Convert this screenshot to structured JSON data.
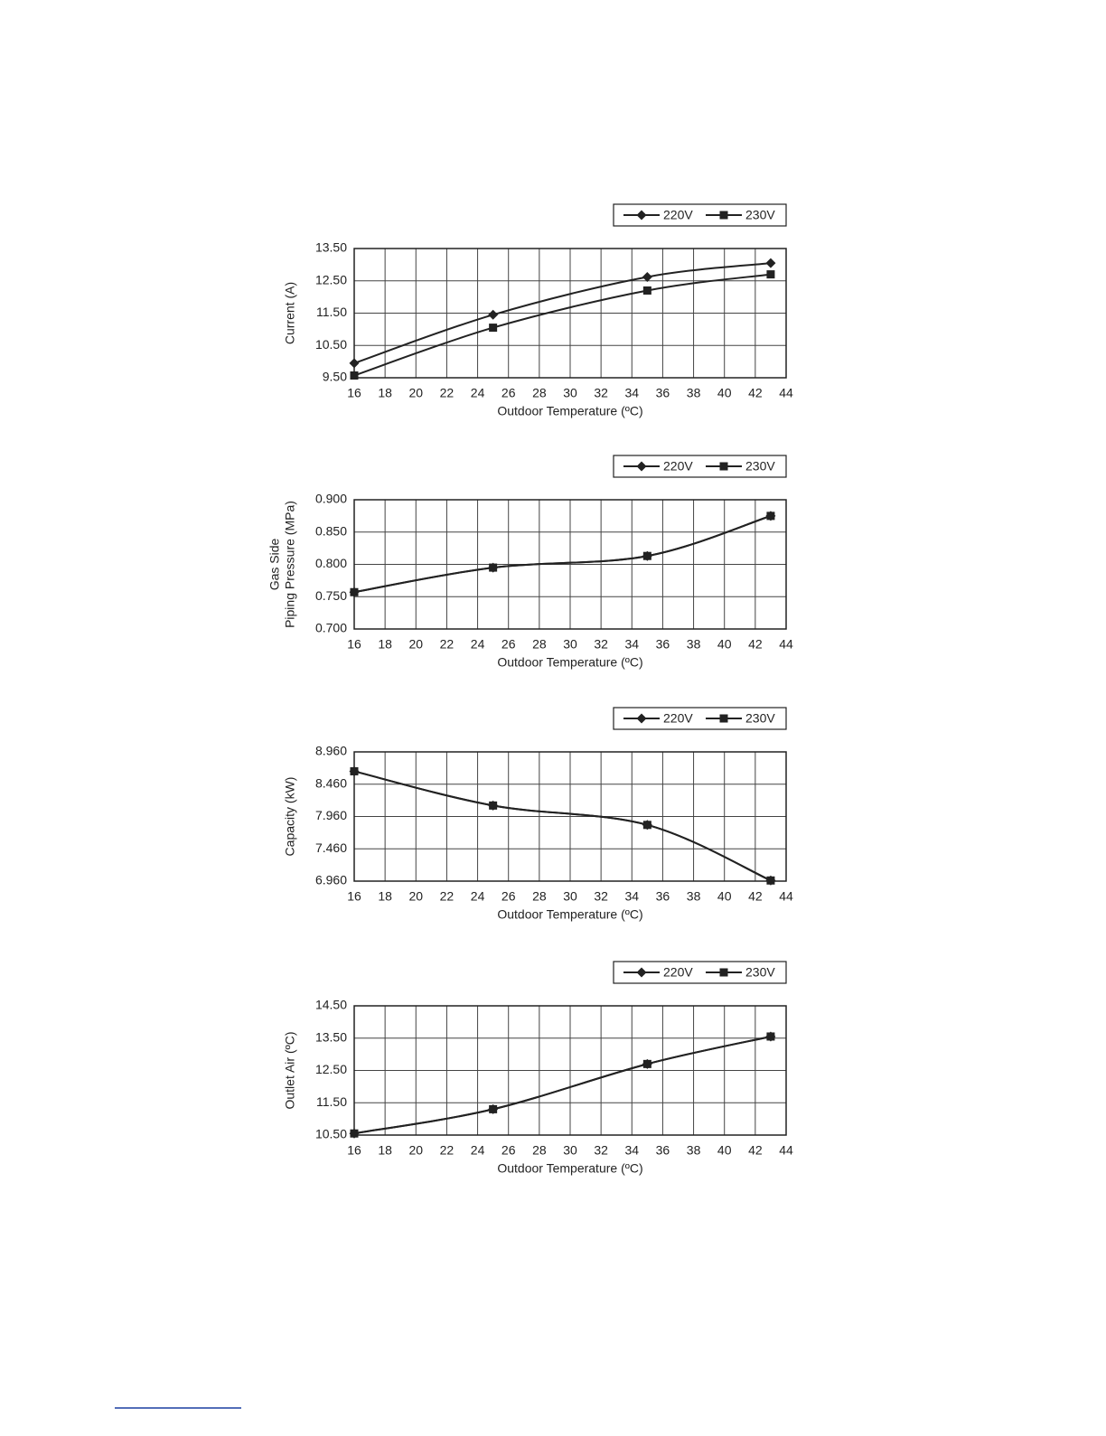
{
  "chart_data": [
    {
      "type": "line",
      "x_label": "Outdoor Temperature (ºC)",
      "y_label": [
        "Current (A)"
      ],
      "x": [
        16,
        25,
        35,
        43
      ],
      "series": [
        {
          "name": "220V",
          "color": "#222222",
          "marker": "diamond",
          "values": [
            9.95,
            11.45,
            12.62,
            13.05
          ]
        },
        {
          "name": "230V",
          "color": "#222222",
          "marker": "square",
          "values": [
            9.57,
            11.05,
            12.2,
            12.7
          ]
        }
      ],
      "xlim": [
        16,
        44
      ],
      "xticks": [
        16,
        18,
        20,
        22,
        24,
        26,
        28,
        30,
        32,
        34,
        36,
        38,
        40,
        42,
        44
      ],
      "ylim": [
        9.5,
        13.5
      ],
      "yticks": [
        {
          "value": 9.5,
          "label": "9.50"
        },
        {
          "value": 10.5,
          "label": "10.50"
        },
        {
          "value": 11.5,
          "label": "11.50"
        },
        {
          "value": 12.5,
          "label": "12.50"
        },
        {
          "value": 13.5,
          "label": "13.50"
        }
      ],
      "grid": true
    },
    {
      "type": "line",
      "x_label": "Outdoor Temperature (ºC)",
      "y_label": [
        "Gas Side",
        "Piping Pressure (MPa)"
      ],
      "x": [
        16,
        25,
        35,
        43
      ],
      "series": [
        {
          "name": "220V",
          "color": "#222222",
          "marker": "diamond",
          "values": [
            0.757,
            0.795,
            0.813,
            0.875
          ]
        },
        {
          "name": "230V",
          "color": "#222222",
          "marker": "square",
          "values": [
            0.757,
            0.795,
            0.813,
            0.875
          ]
        }
      ],
      "xlim": [
        16,
        44
      ],
      "xticks": [
        16,
        18,
        20,
        22,
        24,
        26,
        28,
        30,
        32,
        34,
        36,
        38,
        40,
        42,
        44
      ],
      "ylim": [
        0.7,
        0.9
      ],
      "yticks": [
        {
          "value": 0.7,
          "label": "0.700"
        },
        {
          "value": 0.75,
          "label": "0.750"
        },
        {
          "value": 0.8,
          "label": "0.800"
        },
        {
          "value": 0.85,
          "label": "0.850"
        },
        {
          "value": 0.9,
          "label": "0.900"
        }
      ],
      "grid": true
    },
    {
      "type": "line",
      "x_label": "Outdoor Temperature (ºC)",
      "y_label": [
        "Capacity (kW)"
      ],
      "x": [
        16,
        25,
        35,
        43
      ],
      "series": [
        {
          "name": "220V",
          "color": "#222222",
          "marker": "diamond",
          "values": [
            8.66,
            8.13,
            7.83,
            6.97
          ]
        },
        {
          "name": "230V",
          "color": "#222222",
          "marker": "square",
          "values": [
            8.66,
            8.13,
            7.83,
            6.97
          ]
        }
      ],
      "xlim": [
        16,
        44
      ],
      "xticks": [
        16,
        18,
        20,
        22,
        24,
        26,
        28,
        30,
        32,
        34,
        36,
        38,
        40,
        42,
        44
      ],
      "ylim": [
        6.96,
        8.96
      ],
      "yticks": [
        {
          "value": 6.96,
          "label": "6.960"
        },
        {
          "value": 7.46,
          "label": "7.460"
        },
        {
          "value": 7.96,
          "label": "7.960"
        },
        {
          "value": 8.46,
          "label": "8.460"
        },
        {
          "value": 8.96,
          "label": "8.960"
        }
      ],
      "grid": true
    },
    {
      "type": "line",
      "x_label": "Outdoor Temperature (ºC)",
      "y_label": [
        "Outlet Air (ºC)"
      ],
      "x": [
        16,
        25,
        35,
        43
      ],
      "series": [
        {
          "name": "220V",
          "color": "#222222",
          "marker": "diamond",
          "values": [
            10.55,
            11.3,
            12.7,
            13.55
          ]
        },
        {
          "name": "230V",
          "color": "#222222",
          "marker": "square",
          "values": [
            10.55,
            11.3,
            12.7,
            13.55
          ]
        }
      ],
      "xlim": [
        16,
        44
      ],
      "xticks": [
        16,
        18,
        20,
        22,
        24,
        26,
        28,
        30,
        32,
        34,
        36,
        38,
        40,
        42,
        44
      ],
      "ylim": [
        10.5,
        14.5
      ],
      "yticks": [
        {
          "value": 10.5,
          "label": "10.50"
        },
        {
          "value": 11.5,
          "label": "11.50"
        },
        {
          "value": 12.5,
          "label": "12.50"
        },
        {
          "value": 13.5,
          "label": "13.50"
        },
        {
          "value": 14.5,
          "label": "14.50"
        }
      ],
      "grid": true
    }
  ]
}
